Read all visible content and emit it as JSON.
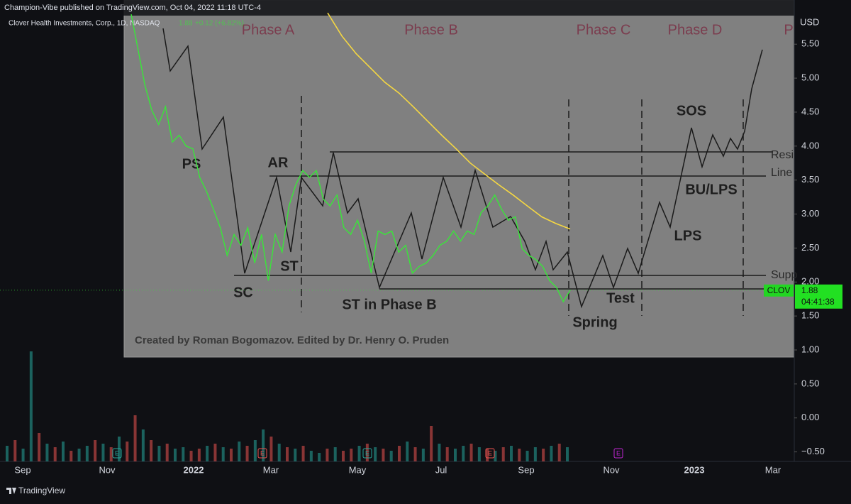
{
  "header": {
    "publisher": "Champion-Vibe published on TradingView.com, Oct 04, 2022 11:18 UTC-4",
    "symbol": "Clover Health Investments, Corp., 1D, NASDAQ",
    "last": "1.88",
    "change": "+0.12 (+6.82%)"
  },
  "price_axis": {
    "currency": "USD",
    "ylim": [
      -0.64,
      6.15
    ],
    "ticks": [
      {
        "value": 5.5,
        "label": "5.50"
      },
      {
        "value": 5,
        "label": "5.00"
      },
      {
        "value": 4.5,
        "label": "4.50"
      },
      {
        "value": 4,
        "label": "4.00"
      },
      {
        "value": 3.5,
        "label": "3.50"
      },
      {
        "value": 3,
        "label": "3.00"
      },
      {
        "value": 2.5,
        "label": "2.50"
      },
      {
        "value": 2,
        "label": "2.00"
      },
      {
        "value": 1.5,
        "label": "1.50"
      },
      {
        "value": 1,
        "label": "1.00"
      },
      {
        "value": 0.5,
        "label": "0.50"
      },
      {
        "value": 0,
        "label": "0.00"
      },
      {
        "value": -0.5,
        "label": "−0.50"
      }
    ]
  },
  "time_axis": [
    "Sep",
    "Nov",
    "2022",
    "Mar",
    "May",
    "Jul",
    "Sep",
    "Nov",
    "2023",
    "Mar"
  ],
  "price_tag": {
    "symbol": "CLOV",
    "price": 1.88,
    "countdown": "04:41:38"
  },
  "series": {
    "close": [
      5.94,
      5.42,
      4.9,
      4.53,
      4.32,
      4.58,
      4.06,
      4.16,
      4.0,
      3.96,
      3.54,
      3.33,
      3.07,
      2.8,
      2.39,
      2.7,
      2.54,
      2.8,
      2.28,
      2.7,
      2.02,
      2.7,
      2.44,
      3.12,
      3.43,
      3.64,
      3.54,
      3.64,
      3.22,
      3.12,
      3.28,
      2.8,
      2.7,
      2.91,
      2.6,
      2.13,
      2.75,
      2.7,
      2.75,
      2.44,
      2.54,
      2.13,
      2.23,
      2.28,
      2.39,
      2.54,
      2.6,
      2.75,
      2.6,
      2.75,
      2.7,
      3.02,
      3.12,
      3.28,
      3.07,
      2.91,
      2.96,
      2.49,
      2.39,
      2.33,
      2.23,
      2.02,
      1.92,
      1.71,
      1.88
    ],
    "close_color": "#39e639",
    "ma": [
      5.96,
      5.62,
      5.36,
      5.15,
      4.94,
      4.78,
      4.58,
      4.37,
      4.16,
      3.96,
      3.75,
      3.59,
      3.43,
      3.28,
      3.12,
      2.96,
      2.86,
      2.78
    ],
    "ma_color": "#f5d742"
  },
  "volume": [
    22,
    30,
    18,
    155,
    40,
    25,
    20,
    28,
    15,
    18,
    22,
    30,
    25,
    20,
    35,
    28,
    65,
    45,
    30,
    22,
    25,
    18,
    20,
    15,
    18,
    22,
    25,
    20,
    18,
    28,
    22,
    30,
    45,
    35,
    25,
    20,
    18,
    22,
    15,
    12,
    18,
    20,
    15,
    18,
    22,
    25,
    20,
    18,
    15,
    22,
    28,
    20,
    18,
    50,
    25,
    20,
    18,
    22,
    25,
    20,
    18,
    15,
    20,
    22,
    18,
    15,
    20,
    18,
    22,
    25,
    20
  ],
  "volume_up": [
    true,
    false,
    true,
    true,
    false,
    true,
    false,
    true,
    false,
    true,
    true,
    false,
    true,
    false,
    true,
    false,
    false,
    true,
    false,
    true,
    false,
    true,
    true,
    false,
    false,
    true,
    false,
    true,
    false,
    true,
    false,
    true,
    true,
    false,
    true,
    false,
    true,
    false,
    true,
    true,
    false,
    true,
    false,
    false,
    true,
    false,
    true,
    false,
    true,
    false,
    true,
    false,
    true,
    false,
    true,
    false,
    true,
    true,
    false,
    true,
    false,
    true,
    false,
    true,
    false,
    true,
    true,
    false,
    true,
    false,
    true
  ],
  "earnings": [
    "E",
    "E",
    "E",
    "E",
    "E"
  ],
  "overlay": {
    "phases": [
      "Phase A",
      "Phase B",
      "Phase C",
      "Phase D",
      "P"
    ],
    "labels": [
      "PS",
      "AR",
      "SC",
      "ST",
      "ST in Phase B",
      "Spring",
      "Test",
      "SOS",
      "BU/LPS",
      "LPS",
      "Resi",
      "Line",
      "Supp"
    ],
    "credit": "Created by Roman Bogomazov. Edited by Dr. Henry O. Pruden"
  },
  "footer": {
    "brand": "TradingView"
  }
}
